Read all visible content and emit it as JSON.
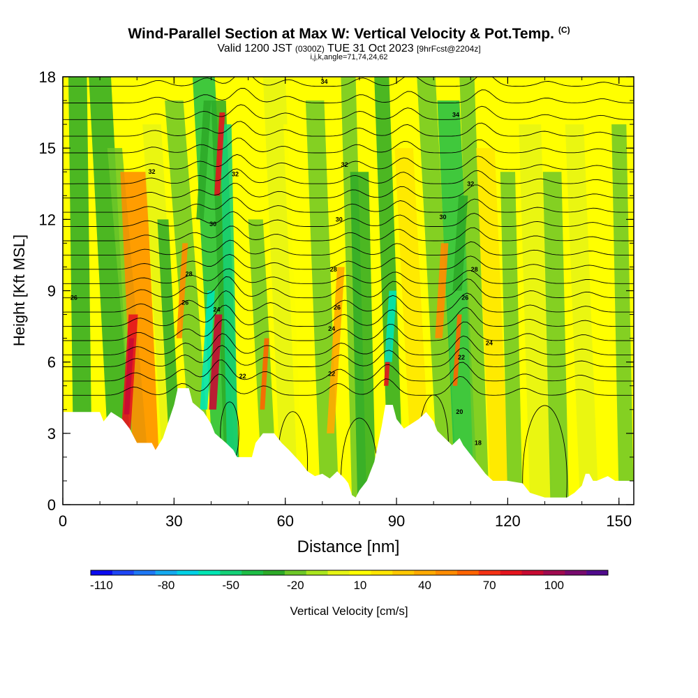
{
  "header": {
    "title": "Wind-Parallel Section at Max W: Vertical Velocity & Pot.Temp.",
    "copyright": "(C)",
    "valid_prefix": "Valid 1200 JST",
    "valid_utc": "(0300Z)",
    "valid_date": "TUE 31 Oct 2023",
    "forecast": "[9hrFcst@2204z]",
    "params": "i,j,k,angle=71,74,24,62"
  },
  "chart_data": {
    "type": "heatmap",
    "xlabel": "Distance [nm]",
    "ylabel": "Height [Kft MSL]",
    "xlim": [
      0,
      154
    ],
    "ylim": [
      0,
      18
    ],
    "x_ticks": [
      0,
      30,
      60,
      90,
      120,
      150
    ],
    "y_ticks": [
      0,
      3,
      6,
      9,
      12,
      15,
      18
    ],
    "colorbar": {
      "label": "Vertical Velocity [cm/s]",
      "tick_labels": [
        "-110",
        "-80",
        "-50",
        "-20",
        "10",
        "40",
        "70",
        "100"
      ],
      "tick_values": [
        -110,
        -80,
        -50,
        -20,
        10,
        40,
        70,
        100
      ],
      "min": -115,
      "max": 125,
      "colors": [
        "#0a0af0",
        "#1e46f5",
        "#1e78f5",
        "#14aaf0",
        "#00d2e6",
        "#00e6b4",
        "#14d278",
        "#1ebe46",
        "#2daa28",
        "#6ec828",
        "#aae61e",
        "#e6f514",
        "#ffff00",
        "#ffe600",
        "#ffc800",
        "#ffaa00",
        "#ff8c00",
        "#ff6400",
        "#f53214",
        "#e6141e",
        "#c80a32",
        "#a00a50",
        "#780a6e",
        "#500a8c"
      ]
    },
    "potential_temperature_labels": [
      {
        "value": "34",
        "x": 70.5,
        "y": 17.8
      },
      {
        "value": "34",
        "x": 106,
        "y": 16.4
      },
      {
        "value": "32",
        "x": 24,
        "y": 14.0
      },
      {
        "value": "32",
        "x": 46.5,
        "y": 13.9
      },
      {
        "value": "32",
        "x": 76,
        "y": 14.3
      },
      {
        "value": "32",
        "x": 110,
        "y": 13.5
      },
      {
        "value": "30",
        "x": 40.5,
        "y": 11.8
      },
      {
        "value": "30",
        "x": 74.5,
        "y": 12.0
      },
      {
        "value": "30",
        "x": 102.5,
        "y": 12.1
      },
      {
        "value": "28",
        "x": 34,
        "y": 9.7
      },
      {
        "value": "28",
        "x": 73,
        "y": 9.9
      },
      {
        "value": "28",
        "x": 111,
        "y": 9.9
      },
      {
        "value": "26",
        "x": 3,
        "y": 8.7
      },
      {
        "value": "26",
        "x": 33,
        "y": 8.5
      },
      {
        "value": "26",
        "x": 74,
        "y": 8.3
      },
      {
        "value": "26",
        "x": 108.5,
        "y": 8.7
      },
      {
        "value": "24",
        "x": 41.5,
        "y": 8.2
      },
      {
        "value": "24",
        "x": 72.5,
        "y": 7.4
      },
      {
        "value": "24",
        "x": 115,
        "y": 6.8
      },
      {
        "value": "22",
        "x": 48.5,
        "y": 5.4
      },
      {
        "value": "22",
        "x": 72.5,
        "y": 5.5
      },
      {
        "value": "22",
        "x": 107.5,
        "y": 6.2
      },
      {
        "value": "20",
        "x": 107,
        "y": 3.9
      },
      {
        "value": "18",
        "x": 112,
        "y": 2.6
      }
    ]
  }
}
